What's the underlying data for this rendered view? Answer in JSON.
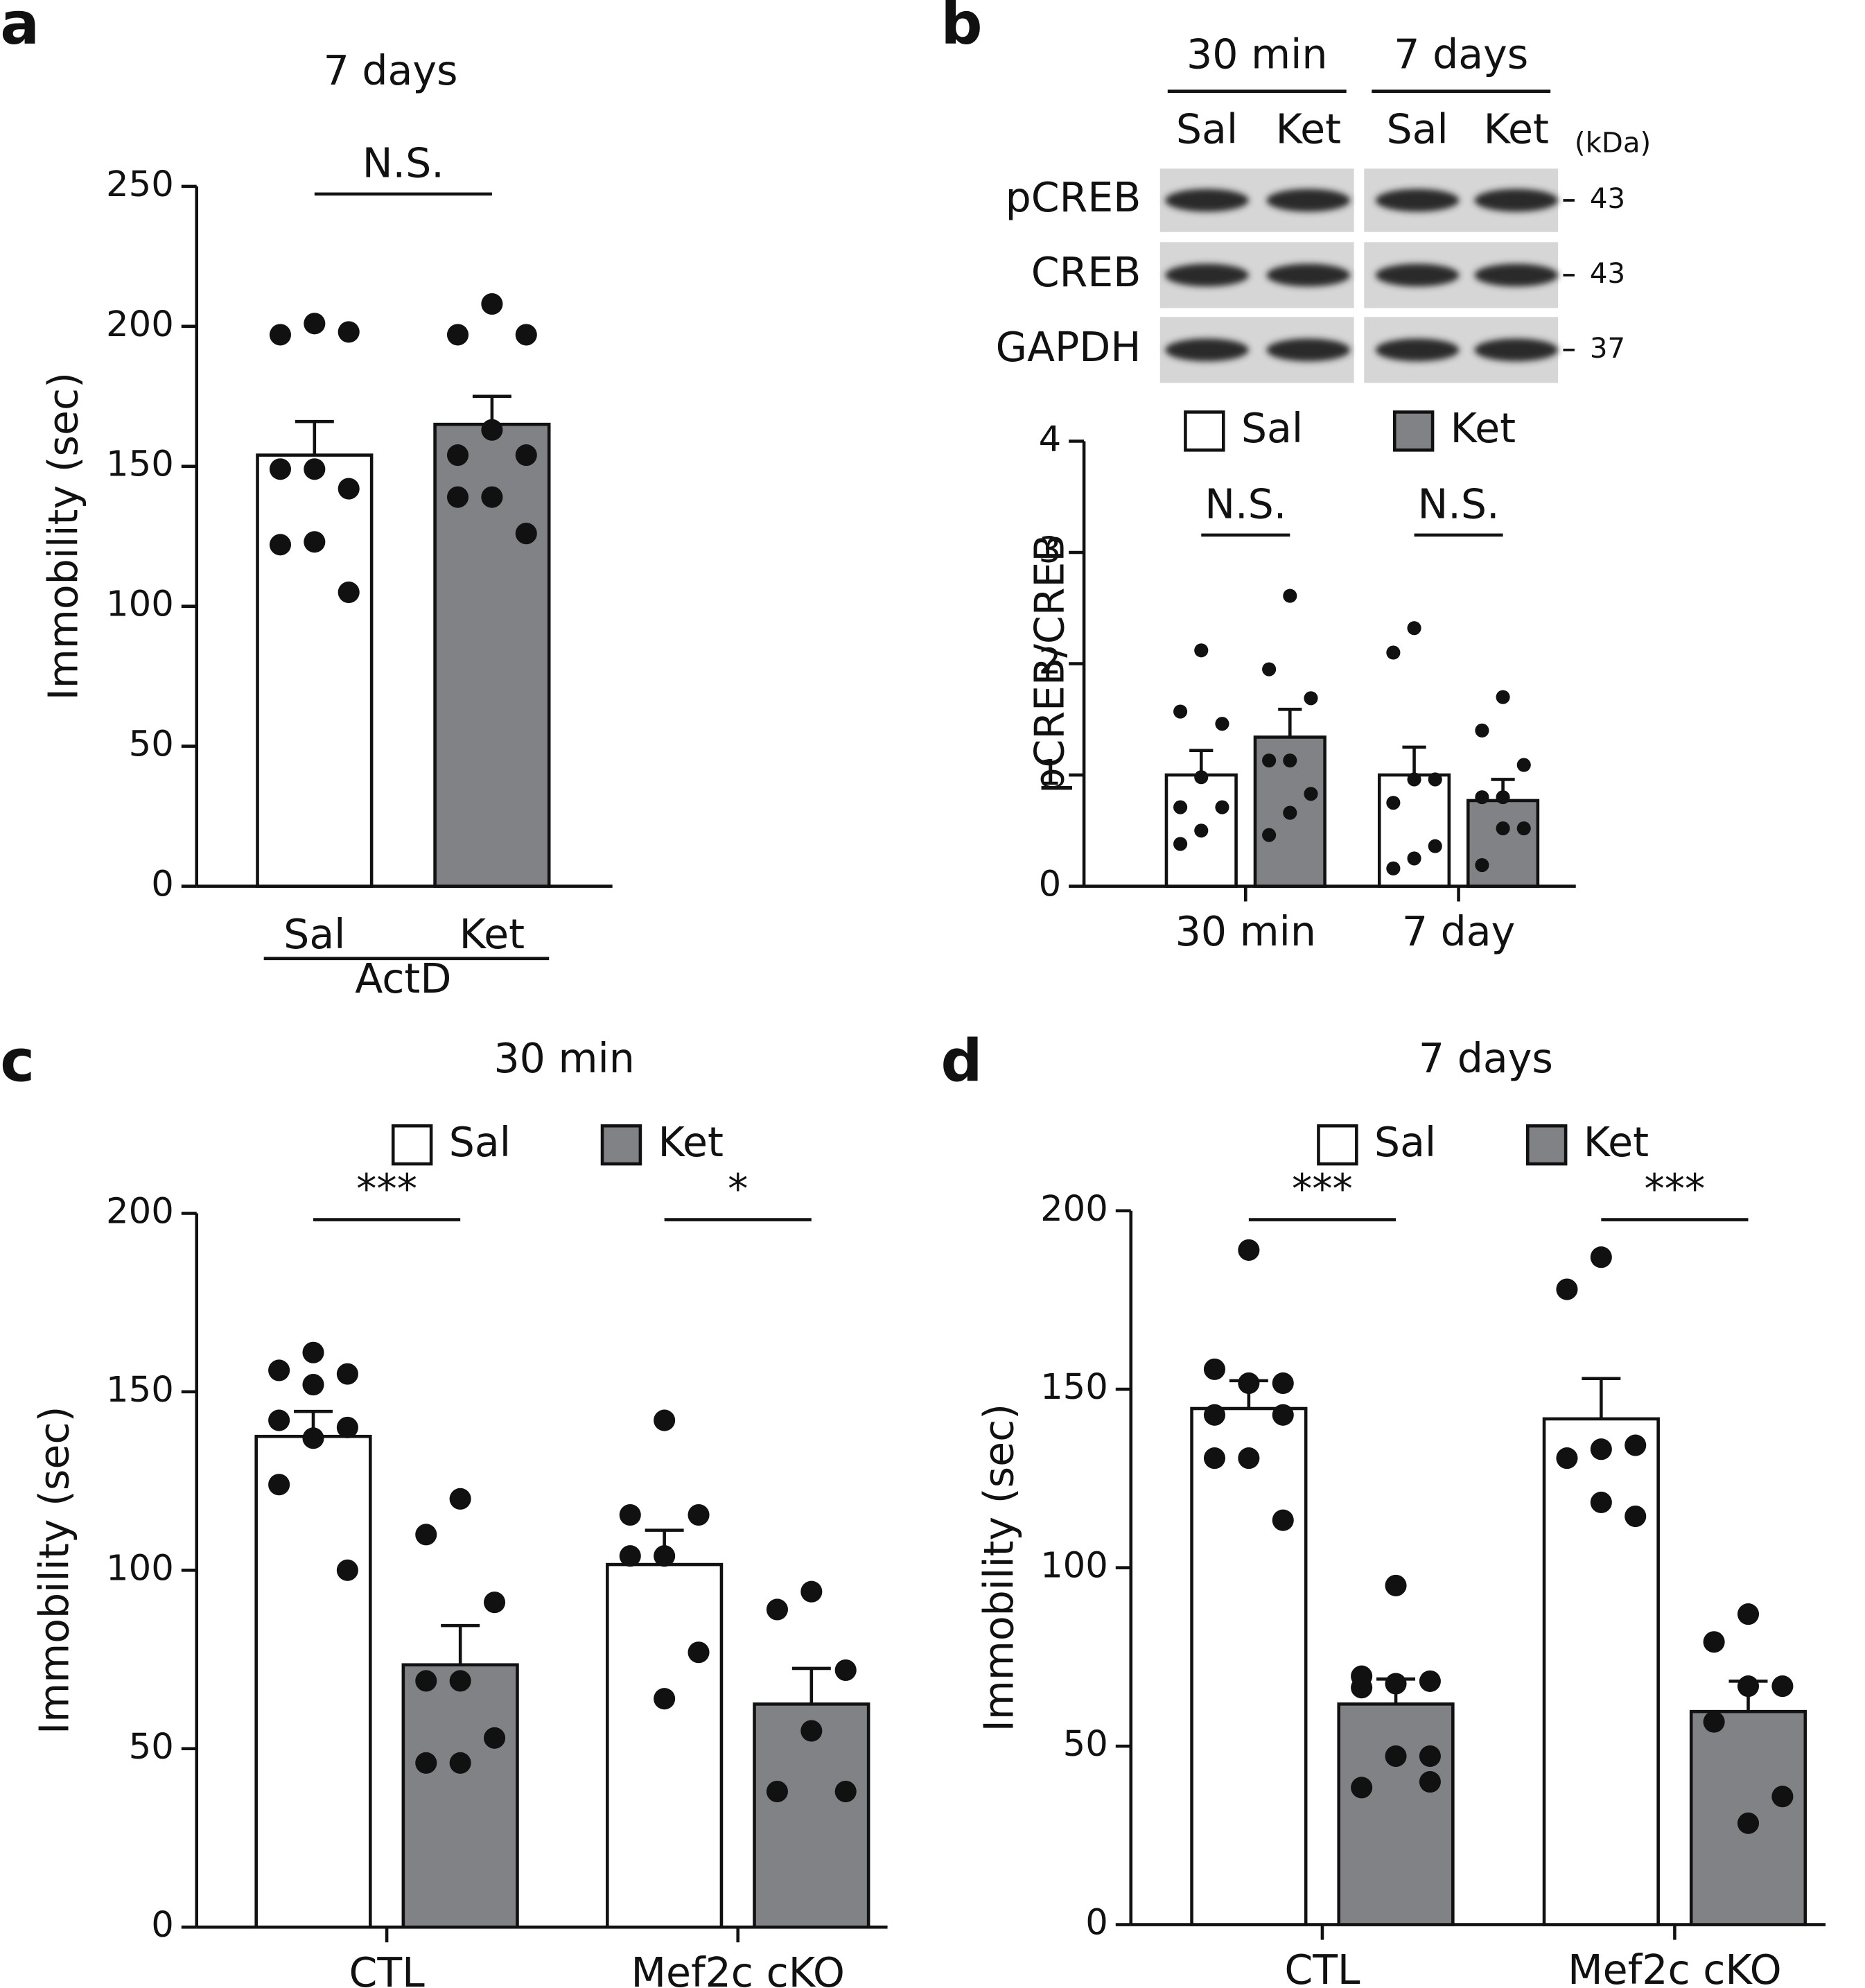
{
  "chart_data": [
    {
      "type": "bar",
      "panel": "a",
      "title": "7 days",
      "ylabel": "Immobility (sec)",
      "categories": [
        "ActD"
      ],
      "legend": false,
      "comparisons": [
        "N.S."
      ],
      "ylim": [
        0,
        250
      ],
      "yticks": [
        0,
        50,
        100,
        150,
        200,
        250
      ],
      "series": [
        {
          "name": "Sal",
          "color": "#ffffff",
          "values": [
            154
          ],
          "errors": [
            12
          ],
          "points": [
            [
              201,
              197,
              198,
              149,
              149,
              142,
              123,
              122,
              105
            ]
          ]
        },
        {
          "name": "Ket",
          "color": "#808285",
          "values": [
            165
          ],
          "errors": [
            10
          ],
          "points": [
            [
              208,
              197,
              197,
              163,
              154,
              154,
              139,
              139,
              126
            ]
          ]
        }
      ]
    },
    {
      "type": "bar",
      "panel": "b",
      "ylabel": "pCREB/CREB",
      "categories": [
        "30 min",
        "7 day"
      ],
      "legend": true,
      "comparisons": [
        "N.S.",
        "N.S."
      ],
      "ylim": [
        0,
        4
      ],
      "yticks": [
        0,
        1,
        2,
        3,
        4
      ],
      "series": [
        {
          "name": "Sal",
          "color": "#ffffff",
          "values": [
            1.0,
            1.0
          ],
          "errors": [
            0.22,
            0.25
          ],
          "points": [
            [
              2.12,
              1.57,
              1.46,
              0.98,
              0.71,
              0.71,
              0.5,
              0.38
            ],
            [
              2.32,
              2.1,
              0.96,
              0.96,
              0.75,
              0.36,
              0.25,
              0.16
            ]
          ]
        },
        {
          "name": "Ket",
          "color": "#808285",
          "values": [
            1.34,
            0.77
          ],
          "errors": [
            0.25,
            0.19
          ],
          "points": [
            [
              2.61,
              1.95,
              1.69,
              1.13,
              1.13,
              0.83,
              0.66,
              0.46
            ],
            [
              1.7,
              1.4,
              1.09,
              0.8,
              0.8,
              0.52,
              0.52,
              0.19
            ]
          ]
        }
      ],
      "blot": {
        "unit": "(kDa)",
        "columns": [
          {
            "label": "30 min",
            "lanes": [
              "Sal",
              "Ket"
            ]
          },
          {
            "label": "7 days",
            "lanes": [
              "Sal",
              "Ket"
            ]
          }
        ],
        "rows": [
          {
            "label": "pCREB",
            "kda": 43
          },
          {
            "label": "CREB",
            "kda": 43
          },
          {
            "label": "GAPDH",
            "kda": 37
          }
        ]
      }
    },
    {
      "type": "bar",
      "panel": "c",
      "title": "30 min",
      "ylabel": "Immobility (sec)",
      "categories": [
        "CTL",
        "Mef2c cKO"
      ],
      "legend": true,
      "comparisons": [
        "***",
        "*"
      ],
      "ylim": [
        0,
        200
      ],
      "yticks": [
        0,
        50,
        100,
        150,
        200
      ],
      "series": [
        {
          "name": "Sal",
          "color": "#ffffff",
          "values": [
            137.5,
            101.6
          ],
          "errors": [
            7,
            9.6
          ],
          "points": [
            [
              161,
              156,
              155,
              152,
              142,
              140,
              137,
              124,
              100
            ],
            [
              142,
              115.5,
              115.5,
              104,
              104,
              77,
              64
            ]
          ]
        },
        {
          "name": "Ket",
          "color": "#808285",
          "values": [
            73.5,
            62.5
          ],
          "errors": [
            11,
            10
          ],
          "points": [
            [
              120,
              110,
              91,
              69,
              69,
              53,
              46,
              46
            ],
            [
              94,
              89,
              72,
              55,
              38,
              38
            ]
          ]
        }
      ]
    },
    {
      "type": "bar",
      "panel": "d",
      "title": "7 days",
      "ylabel": "Immobility (sec)",
      "categories": [
        "CTL",
        "Mef2c cKO"
      ],
      "legend": true,
      "comparisons": [
        "***",
        "***"
      ],
      "ylim": [
        0,
        200
      ],
      "yticks": [
        0,
        50,
        100,
        150,
        200
      ],
      "series": [
        {
          "name": "Sal",
          "color": "#ffffff",
          "values": [
            144.6,
            141.7
          ],
          "errors": [
            7.8,
            11.3
          ],
          "points": [
            [
              189,
              155.6,
              151.7,
              151.7,
              142.8,
              142.8,
              130.7,
              130.7,
              113.3
            ],
            [
              187,
              178,
              134.3,
              133.2,
              130.7,
              114.4,
              118.3
            ]
          ]
        },
        {
          "name": "Ket",
          "color": "#808285",
          "values": [
            61.8,
            59.7
          ],
          "errors": [
            7,
            8.5
          ],
          "points": [
            [
              95,
              69.6,
              68.2,
              67.5,
              66.4,
              47.2,
              47.2,
              38.4,
              40
            ],
            [
              87,
              79.2,
              66.8,
              66.8,
              56.8,
              35.9,
              28.4
            ]
          ]
        }
      ]
    }
  ]
}
